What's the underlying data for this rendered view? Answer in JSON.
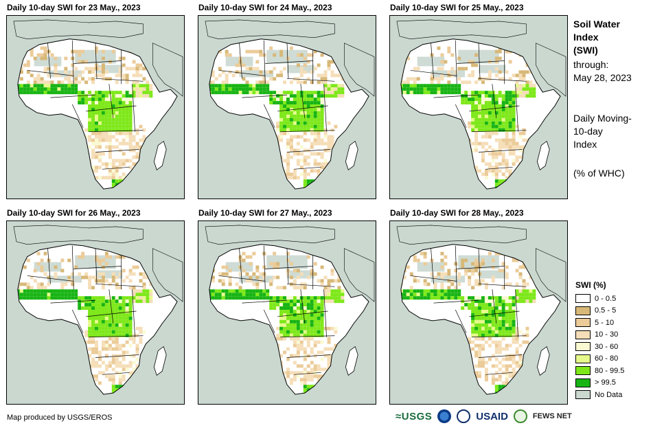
{
  "panels": [
    {
      "title": "Daily 10-day  SWI for 23 May., 2023",
      "wet_level": 0.85
    },
    {
      "title": "Daily 10-day  SWI for 24 May., 2023",
      "wet_level": 0.8
    },
    {
      "title": "Daily 10-day  SWI for 25 May., 2023",
      "wet_level": 0.75
    },
    {
      "title": "Daily 10-day  SWI for 26 May., 2023",
      "wet_level": 0.85
    },
    {
      "title": "Daily 10-day  SWI for 27 May., 2023",
      "wet_level": 0.7
    },
    {
      "title": "Daily 10-day  SWI for 28 May., 2023",
      "wet_level": 0.65
    }
  ],
  "side": {
    "title_line1": "Soil Water",
    "title_line2": "Index",
    "title_line3": "(SWI)",
    "through_label": "through:",
    "through_date": "May 28, 2023",
    "desc_line1": "Daily Moving-",
    "desc_line2": "10-day",
    "desc_line3": "Index",
    "units": "(% of WHC)"
  },
  "legend": {
    "title": "SWI (%)",
    "items": [
      {
        "label": "0 - 0.5",
        "color": "#ffffff"
      },
      {
        "label": "0.5 - 5",
        "color": "#d8b878"
      },
      {
        "label": "5 - 10",
        "color": "#ebcb98"
      },
      {
        "label": "10 - 30",
        "color": "#f5deb8"
      },
      {
        "label": "30 - 60",
        "color": "#fafad2"
      },
      {
        "label": "60 - 80",
        "color": "#e6fa8c"
      },
      {
        "label": "80 - 99.5",
        "color": "#7ee81a"
      },
      {
        "label": "> 99.5",
        "color": "#18b414"
      },
      {
        "label": "No Data",
        "color": "#cad8d0"
      }
    ]
  },
  "credit": "Map produced by USGS/EROS",
  "logos": {
    "usgs": "≈USGS",
    "usaid": "USAID",
    "fews": "FEWS NET"
  },
  "colors": {
    "ocean": "#cad8d0",
    "land": "#ffffff",
    "border": "#000000"
  }
}
